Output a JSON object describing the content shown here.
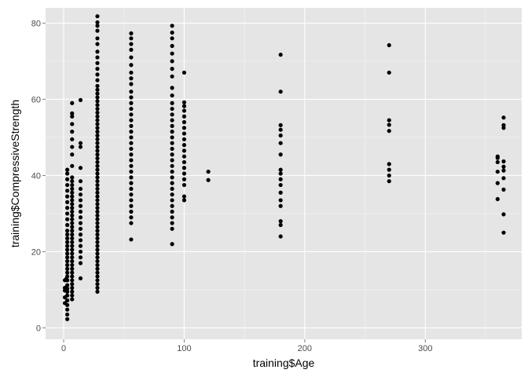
{
  "chart_data": {
    "type": "scatter",
    "title": "",
    "xlabel": "training$Age",
    "ylabel": "training$CompressiveStrength",
    "xlim": [
      -15,
      380
    ],
    "ylim": [
      -3,
      84
    ],
    "x_ticks": [
      0,
      100,
      200,
      300
    ],
    "y_ticks": [
      0,
      20,
      40,
      60,
      80
    ],
    "x_minor": [
      50,
      150,
      250,
      350
    ],
    "y_minor": [
      10,
      30,
      50,
      70
    ],
    "grid": true,
    "panel_background": "#e5e5e5",
    "grid_color": "#ffffff",
    "point_color": "#000000",
    "points": [
      [
        1,
        6.5
      ],
      [
        1,
        12.5
      ],
      [
        1,
        8
      ],
      [
        1,
        9.8
      ],
      [
        1,
        10.5
      ],
      [
        2,
        12.8
      ],
      [
        3,
        2.3
      ],
      [
        3,
        3.5
      ],
      [
        3,
        4.8
      ],
      [
        3,
        6
      ],
      [
        3,
        7.2
      ],
      [
        3,
        8.5
      ],
      [
        3,
        9.5
      ],
      [
        3,
        10.3
      ],
      [
        3,
        11.2
      ],
      [
        3,
        12.5
      ],
      [
        3,
        13.5
      ],
      [
        3,
        14.5
      ],
      [
        3,
        15.5
      ],
      [
        3,
        16.5
      ],
      [
        3,
        17.5
      ],
      [
        3,
        18.5
      ],
      [
        3,
        19.5
      ],
      [
        3,
        20.5
      ],
      [
        3,
        21.5
      ],
      [
        3,
        22.5
      ],
      [
        3,
        23.5
      ],
      [
        3,
        24.5
      ],
      [
        3,
        25.5
      ],
      [
        3,
        27
      ],
      [
        3,
        28.5
      ],
      [
        3,
        30
      ],
      [
        3,
        31.5
      ],
      [
        3,
        33
      ],
      [
        3,
        34.5
      ],
      [
        3,
        36
      ],
      [
        3,
        37.5
      ],
      [
        3,
        39
      ],
      [
        3,
        40.5
      ],
      [
        3,
        41.5
      ],
      [
        7,
        7.5
      ],
      [
        7,
        8.5
      ],
      [
        7,
        9.5
      ],
      [
        7,
        10.5
      ],
      [
        7,
        11.5
      ],
      [
        7,
        12.5
      ],
      [
        7,
        13.5
      ],
      [
        7,
        14.5
      ],
      [
        7,
        15.5
      ],
      [
        7,
        16.5
      ],
      [
        7,
        17.5
      ],
      [
        7,
        18.5
      ],
      [
        7,
        19.5
      ],
      [
        7,
        20.5
      ],
      [
        7,
        21.5
      ],
      [
        7,
        22.5
      ],
      [
        7,
        23.5
      ],
      [
        7,
        24.5
      ],
      [
        7,
        25.5
      ],
      [
        7,
        26.5
      ],
      [
        7,
        27.5
      ],
      [
        7,
        28.5
      ],
      [
        7,
        29.5
      ],
      [
        7,
        30.5
      ],
      [
        7,
        31.5
      ],
      [
        7,
        32.5
      ],
      [
        7,
        33.5
      ],
      [
        7,
        34.5
      ],
      [
        7,
        35.5
      ],
      [
        7,
        36.5
      ],
      [
        7,
        37.5
      ],
      [
        7,
        38.5
      ],
      [
        7,
        39.5
      ],
      [
        7,
        42.5
      ],
      [
        7,
        45.5
      ],
      [
        7,
        47.5
      ],
      [
        7,
        49.5
      ],
      [
        7,
        51.5
      ],
      [
        7,
        53.5
      ],
      [
        7,
        55.5
      ],
      [
        7,
        56.3
      ],
      [
        7,
        59
      ],
      [
        14,
        13
      ],
      [
        14,
        17
      ],
      [
        14,
        18.5
      ],
      [
        14,
        20
      ],
      [
        14,
        21.5
      ],
      [
        14,
        23
      ],
      [
        14,
        24.5
      ],
      [
        14,
        26
      ],
      [
        14,
        27.5
      ],
      [
        14,
        29
      ],
      [
        14,
        30.5
      ],
      [
        14,
        32
      ],
      [
        14,
        33.5
      ],
      [
        14,
        35
      ],
      [
        14,
        36.5
      ],
      [
        14,
        38.5
      ],
      [
        14,
        42
      ],
      [
        14,
        47.5
      ],
      [
        14,
        48.5
      ],
      [
        14,
        59.8
      ],
      [
        28,
        9.5
      ],
      [
        28,
        10.5
      ],
      [
        28,
        11.5
      ],
      [
        28,
        12.5
      ],
      [
        28,
        13.5
      ],
      [
        28,
        14.5
      ],
      [
        28,
        15.5
      ],
      [
        28,
        16.5
      ],
      [
        28,
        17.5
      ],
      [
        28,
        18.5
      ],
      [
        28,
        19.5
      ],
      [
        28,
        20.5
      ],
      [
        28,
        21.5
      ],
      [
        28,
        22.5
      ],
      [
        28,
        23.5
      ],
      [
        28,
        24.5
      ],
      [
        28,
        25.5
      ],
      [
        28,
        26.5
      ],
      [
        28,
        27.5
      ],
      [
        28,
        28.5
      ],
      [
        28,
        29.5
      ],
      [
        28,
        30.5
      ],
      [
        28,
        31.5
      ],
      [
        28,
        32.5
      ],
      [
        28,
        33.5
      ],
      [
        28,
        34.5
      ],
      [
        28,
        35.5
      ],
      [
        28,
        36.5
      ],
      [
        28,
        37.5
      ],
      [
        28,
        38.5
      ],
      [
        28,
        39.5
      ],
      [
        28,
        40.5
      ],
      [
        28,
        41.5
      ],
      [
        28,
        42.5
      ],
      [
        28,
        43.5
      ],
      [
        28,
        44.5
      ],
      [
        28,
        45.5
      ],
      [
        28,
        46.5
      ],
      [
        28,
        47.5
      ],
      [
        28,
        48.5
      ],
      [
        28,
        49.5
      ],
      [
        28,
        50.5
      ],
      [
        28,
        51.5
      ],
      [
        28,
        52.5
      ],
      [
        28,
        53.5
      ],
      [
        28,
        54.5
      ],
      [
        28,
        55.5
      ],
      [
        28,
        56.5
      ],
      [
        28,
        57.5
      ],
      [
        28,
        58.5
      ],
      [
        28,
        59.5
      ],
      [
        28,
        60.5
      ],
      [
        28,
        61.5
      ],
      [
        28,
        62.5
      ],
      [
        28,
        63.5
      ],
      [
        28,
        65
      ],
      [
        28,
        66.5
      ],
      [
        28,
        68
      ],
      [
        28,
        69.5
      ],
      [
        28,
        71
      ],
      [
        28,
        72.5
      ],
      [
        28,
        74.5
      ],
      [
        28,
        76
      ],
      [
        28,
        78
      ],
      [
        28,
        79.3
      ],
      [
        28,
        80.2
      ],
      [
        28,
        81.8
      ],
      [
        56,
        23.2
      ],
      [
        56,
        27.5
      ],
      [
        56,
        29
      ],
      [
        56,
        30.5
      ],
      [
        56,
        32
      ],
      [
        56,
        33.5
      ],
      [
        56,
        35
      ],
      [
        56,
        36.5
      ],
      [
        56,
        38
      ],
      [
        56,
        39.5
      ],
      [
        56,
        41
      ],
      [
        56,
        42.5
      ],
      [
        56,
        44
      ],
      [
        56,
        45.5
      ],
      [
        56,
        47
      ],
      [
        56,
        48.5
      ],
      [
        56,
        50
      ],
      [
        56,
        51.5
      ],
      [
        56,
        53
      ],
      [
        56,
        54.5
      ],
      [
        56,
        56
      ],
      [
        56,
        57.5
      ],
      [
        56,
        59
      ],
      [
        56,
        60.5
      ],
      [
        56,
        62
      ],
      [
        56,
        64
      ],
      [
        56,
        65.5
      ],
      [
        56,
        67
      ],
      [
        56,
        69
      ],
      [
        56,
        71
      ],
      [
        56,
        73
      ],
      [
        56,
        74.5
      ],
      [
        56,
        76
      ],
      [
        56,
        77.3
      ],
      [
        90,
        22
      ],
      [
        90,
        26
      ],
      [
        90,
        27.5
      ],
      [
        90,
        29
      ],
      [
        90,
        30.5
      ],
      [
        90,
        32
      ],
      [
        90,
        33.5
      ],
      [
        90,
        35
      ],
      [
        90,
        36.5
      ],
      [
        90,
        38
      ],
      [
        90,
        39.5
      ],
      [
        90,
        41
      ],
      [
        90,
        42.5
      ],
      [
        90,
        44
      ],
      [
        90,
        45.5
      ],
      [
        90,
        47
      ],
      [
        90,
        48.5
      ],
      [
        90,
        50
      ],
      [
        90,
        51.5
      ],
      [
        90,
        53
      ],
      [
        90,
        54.5
      ],
      [
        90,
        56
      ],
      [
        90,
        57.5
      ],
      [
        90,
        59
      ],
      [
        90,
        61
      ],
      [
        90,
        63
      ],
      [
        90,
        66
      ],
      [
        90,
        68
      ],
      [
        90,
        70
      ],
      [
        90,
        72
      ],
      [
        90,
        74
      ],
      [
        90,
        76
      ],
      [
        90,
        77.5
      ],
      [
        90,
        79.3
      ],
      [
        100,
        33.5
      ],
      [
        100,
        34.5
      ],
      [
        100,
        37.5
      ],
      [
        100,
        39
      ],
      [
        100,
        40.5
      ],
      [
        100,
        42
      ],
      [
        100,
        43.5
      ],
      [
        100,
        45
      ],
      [
        100,
        46.5
      ],
      [
        100,
        48
      ],
      [
        100,
        49.5
      ],
      [
        100,
        51
      ],
      [
        100,
        52.5
      ],
      [
        100,
        54
      ],
      [
        100,
        55.5
      ],
      [
        100,
        57
      ],
      [
        100,
        58.2
      ],
      [
        100,
        59.2
      ],
      [
        100,
        67
      ],
      [
        120,
        38.8
      ],
      [
        120,
        41
      ],
      [
        180,
        24
      ],
      [
        180,
        27
      ],
      [
        180,
        28
      ],
      [
        180,
        32
      ],
      [
        180,
        33.5
      ],
      [
        180,
        35.5
      ],
      [
        180,
        37.5
      ],
      [
        180,
        39
      ],
      [
        180,
        40.5
      ],
      [
        180,
        41.5
      ],
      [
        180,
        45.5
      ],
      [
        180,
        48.5
      ],
      [
        180,
        50.5
      ],
      [
        180,
        52
      ],
      [
        180,
        53.2
      ],
      [
        180,
        62
      ],
      [
        180,
        71.7
      ],
      [
        270,
        38.5
      ],
      [
        270,
        40
      ],
      [
        270,
        41.5
      ],
      [
        270,
        43
      ],
      [
        270,
        51.7
      ],
      [
        270,
        53.3
      ],
      [
        270,
        54.5
      ],
      [
        270,
        67
      ],
      [
        270,
        74.2
      ],
      [
        360,
        33.8
      ],
      [
        360,
        38
      ],
      [
        360,
        41
      ],
      [
        360,
        43.5
      ],
      [
        360,
        44.6
      ],
      [
        360,
        45
      ],
      [
        365,
        25
      ],
      [
        365,
        29.8
      ],
      [
        365,
        36.3
      ],
      [
        365,
        39.3
      ],
      [
        365,
        41.3
      ],
      [
        365,
        42.3
      ],
      [
        365,
        43.7
      ],
      [
        365,
        52.5
      ],
      [
        365,
        53.2
      ],
      [
        365,
        55.2
      ]
    ]
  }
}
